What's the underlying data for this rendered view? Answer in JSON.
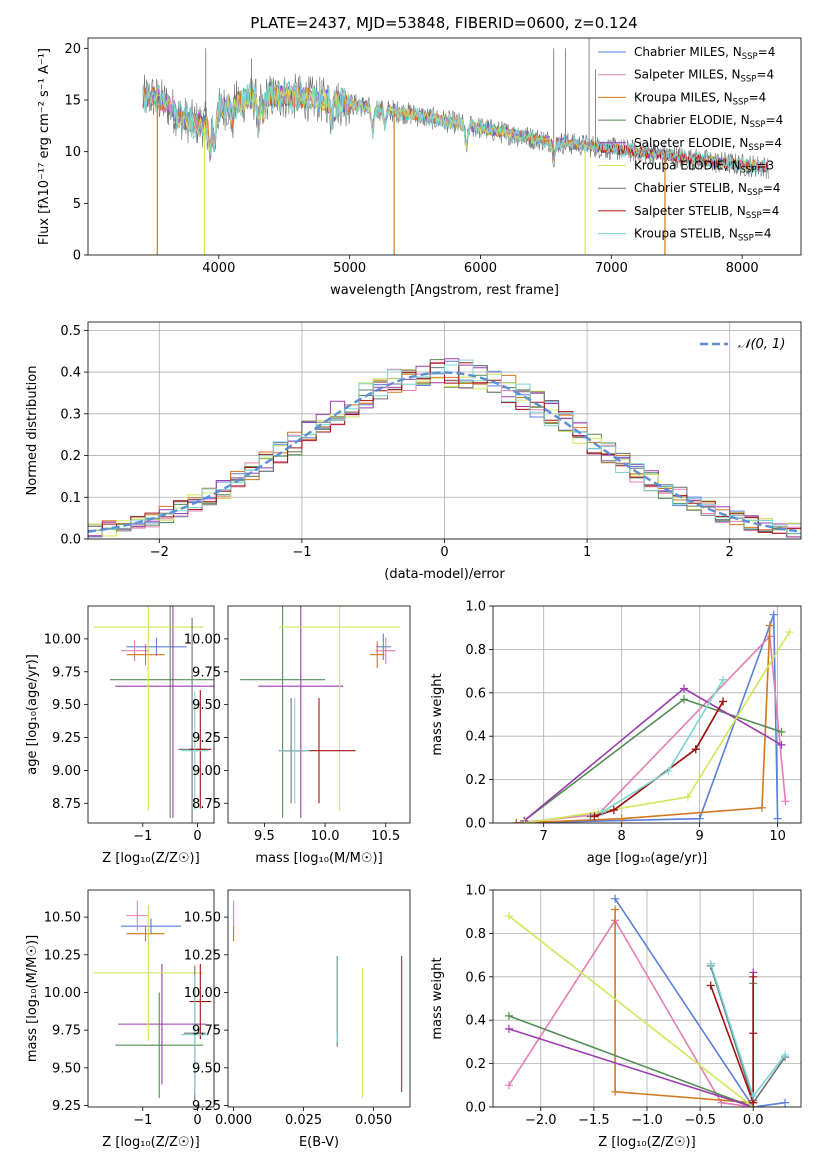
{
  "figure": {
    "title": "PLATE=2437, MJD=53848, FIBERID=0600, z=0.124"
  },
  "colors": {
    "chabrier_miles": "#5b7fdb",
    "salpeter_miles": "#e47fb3",
    "kroupa_miles": "#d2781f",
    "chabrier_elodie": "#548c54",
    "salpeter_elodie": "#9b3caf",
    "kroupa_elodie": "#cfe85a",
    "chabrier_stelib": "#707070",
    "salpeter_stelib": "#a51010",
    "kroupa_stelib": "#7dd4d4",
    "normal": "#5b8fd6"
  },
  "chart_data": [
    {
      "id": "spectrum",
      "type": "line",
      "xlabel": "wavelength [Angstrom, rest frame]",
      "ylabel": "Flux [fλ10⁻¹⁷ erg cm⁻² s⁻¹ A⁻¹]",
      "xlim": [
        3000,
        8450
      ],
      "ylim": [
        0,
        21
      ],
      "xticks": [
        4000,
        5000,
        6000,
        7000,
        8000
      ],
      "yticks": [
        0,
        5,
        10,
        15,
        20
      ],
      "legend_position": "upper right",
      "legend": [
        {
          "label": "Chabrier MILES, N",
          "sub": "SSP",
          "value": "=4",
          "color": "chabrier_miles"
        },
        {
          "label": "Salpeter MILES, N",
          "sub": "SSP",
          "value": "=4",
          "color": "salpeter_miles"
        },
        {
          "label": "Kroupa MILES, N",
          "sub": "SSP",
          "value": "=4",
          "color": "kroupa_miles"
        },
        {
          "label": "Chabrier ELODIE, N",
          "sub": "SSP",
          "value": "=4",
          "color": "chabrier_elodie"
        },
        {
          "label": "Salpeter ELODIE, N",
          "sub": "SSP",
          "value": "=4",
          "color": "salpeter_elodie"
        },
        {
          "label": "Kroupa ELODIE, N",
          "sub": "SSP",
          "value": "=3",
          "color": "kroupa_elodie"
        },
        {
          "label": "Chabrier STELIB, N",
          "sub": "SSP",
          "value": "=4",
          "color": "chabrier_stelib"
        },
        {
          "label": "Salpeter STELIB, N",
          "sub": "SSP",
          "value": "=4",
          "color": "salpeter_stelib"
        },
        {
          "label": "Kroupa STELIB, N",
          "sub": "SSP",
          "value": "=4",
          "color": "kroupa_stelib"
        }
      ],
      "continuum": {
        "x": [
          3420,
          3500,
          3600,
          3700,
          3800,
          3900,
          4000,
          4100,
          4200,
          4300,
          4400,
          4500,
          4600,
          4700,
          4800,
          4900,
          5000,
          5200,
          5400,
          5600,
          5800,
          6000,
          6200,
          6400,
          6600,
          6800,
          7000,
          7200,
          7400,
          7600,
          7800,
          8000,
          8200
        ],
        "y": [
          15.2,
          15.3,
          14.6,
          13.4,
          12.8,
          12.6,
          14.0,
          14.6,
          15.0,
          15.2,
          15.3,
          15.4,
          15.3,
          15.1,
          15.0,
          14.8,
          14.6,
          14.2,
          13.8,
          13.3,
          12.8,
          12.3,
          11.8,
          11.3,
          10.9,
          10.6,
          10.3,
          10.0,
          9.7,
          9.3,
          9.0,
          8.7,
          8.5
        ]
      },
      "absorption_lines": [
        {
          "x": 3933,
          "depth": 3.2
        },
        {
          "x": 3968,
          "depth": 2.8
        },
        {
          "x": 4102,
          "depth": 1.8
        },
        {
          "x": 4304,
          "depth": 2.6
        },
        {
          "x": 4340,
          "depth": 1.6
        },
        {
          "x": 4861,
          "depth": 1.5
        },
        {
          "x": 5175,
          "depth": 2.4
        },
        {
          "x": 5270,
          "depth": 1.4
        },
        {
          "x": 5892,
          "depth": 2.0
        },
        {
          "x": 6563,
          "depth": 1.5
        }
      ],
      "dropouts": [
        {
          "x": 3530,
          "color": "kroupa_miles"
        },
        {
          "x": 3890,
          "color": "kroupa_elodie"
        },
        {
          "x": 5340,
          "color": "kroupa_miles"
        },
        {
          "x": 6800,
          "color": "kroupa_elodie"
        },
        {
          "x": 7410,
          "color": "kroupa_miles"
        }
      ],
      "spikes": [
        {
          "x": 3900,
          "top": 20
        },
        {
          "x": 4250,
          "top": 19
        },
        {
          "x": 6560,
          "top": 20
        },
        {
          "x": 6650,
          "top": 20
        },
        {
          "x": 6830,
          "top": 21
        },
        {
          "x": 6880,
          "top": 18
        }
      ]
    },
    {
      "id": "residuals",
      "type": "histogram",
      "xlabel": "(data-model)/error",
      "ylabel": "Normed distribution",
      "xlim": [
        -2.5,
        2.5
      ],
      "ylim": [
        0,
        0.52
      ],
      "xticks": [
        -2,
        -1,
        0,
        1,
        2
      ],
      "xticklabels": [
        "−2",
        "−1",
        "0",
        "1",
        "2"
      ],
      "yticks": [
        0.0,
        0.1,
        0.2,
        0.3,
        0.4,
        0.5
      ],
      "yticklabels": [
        "0.0",
        "0.1",
        "0.2",
        "0.3",
        "0.4",
        "0.5"
      ],
      "bin_width": 0.1,
      "grid": true,
      "legend": [
        {
          "label": "𝒩(0, 1)",
          "color": "normal",
          "style": "dashed"
        }
      ]
    },
    {
      "id": "age_vs_Z",
      "type": "errorbar",
      "xlabel": "Z [log₁₀(Z/Z☉)]",
      "ylabel": "age  [log₁₀(age/yr)]",
      "xlim": [
        -2.0,
        0.3
      ],
      "ylim": [
        8.6,
        10.25
      ],
      "xticks": [
        -1,
        0
      ],
      "xticklabels": [
        "−1",
        "0"
      ],
      "yticks": [
        8.75,
        9.0,
        9.25,
        9.5,
        9.75,
        10.0
      ],
      "yticklabels": [
        "8.75",
        "9.00",
        "9.25",
        "9.50",
        "9.75",
        "10.00"
      ],
      "points": [
        {
          "x": -0.75,
          "y": 9.94,
          "xerr": 0.55,
          "yerr": 0.07,
          "color": "chabrier_miles"
        },
        {
          "x": -1.15,
          "y": 9.91,
          "xerr": 0.25,
          "yerr": 0.08,
          "color": "salpeter_miles"
        },
        {
          "x": -0.95,
          "y": 9.88,
          "xerr": 0.35,
          "yerr": 0.08,
          "color": "kroupa_miles"
        },
        {
          "x": -0.5,
          "y": 9.69,
          "xerr": 1.1,
          "yerr": 1.05,
          "color": "chabrier_elodie"
        },
        {
          "x": -0.45,
          "y": 9.64,
          "xerr": 1.05,
          "yerr": 1.0,
          "color": "salpeter_elodie"
        },
        {
          "x": -0.9,
          "y": 10.09,
          "xerr": 1.0,
          "yerr": 1.4,
          "color": "kroupa_elodie"
        },
        {
          "x": -0.1,
          "y": 9.16,
          "xerr": 0.25,
          "yerr": 1.0,
          "color": "chabrier_stelib"
        },
        {
          "x": 0.05,
          "y": 9.16,
          "xerr": 0.2,
          "yerr": 0.45,
          "color": "salpeter_stelib"
        },
        {
          "x": -0.05,
          "y": 9.15,
          "xerr": 0.25,
          "yerr": 0.45,
          "color": "kroupa_stelib"
        }
      ]
    },
    {
      "id": "age_vs_mass",
      "type": "errorbar",
      "xlabel": "mass [log₁₀(M/M☉)]",
      "ylabel": "",
      "xlim": [
        9.2,
        10.7
      ],
      "ylim": [
        8.6,
        10.25
      ],
      "xticks": [
        9.5,
        10.0,
        10.5
      ],
      "xticklabels": [
        "9.5",
        "10.0",
        "10.5"
      ],
      "yticks": [
        8.75,
        9.0,
        9.25,
        9.5,
        9.75,
        10.0
      ],
      "yticklabels": [
        "8.75",
        "9.00",
        "9.25",
        "9.50",
        "9.75",
        "10.00"
      ],
      "points": [
        {
          "x": 10.48,
          "y": 9.94,
          "xerr": 0.06,
          "yerr": 0.1,
          "color": "chabrier_miles"
        },
        {
          "x": 10.5,
          "y": 9.91,
          "xerr": 0.08,
          "yerr": 0.1,
          "color": "salpeter_miles"
        },
        {
          "x": 10.43,
          "y": 9.88,
          "xerr": 0.06,
          "yerr": 0.1,
          "color": "kroupa_miles"
        },
        {
          "x": 9.65,
          "y": 9.69,
          "xerr": 0.35,
          "yerr": 1.05,
          "color": "chabrier_elodie"
        },
        {
          "x": 9.8,
          "y": 9.64,
          "xerr": 0.35,
          "yerr": 1.0,
          "color": "salpeter_elodie"
        },
        {
          "x": 10.12,
          "y": 10.09,
          "xerr": 0.5,
          "yerr": 1.4,
          "color": "kroupa_elodie"
        },
        {
          "x": 9.72,
          "y": 9.15,
          "xerr": 0.1,
          "yerr": 0.4,
          "color": "chabrier_stelib"
        },
        {
          "x": 9.95,
          "y": 9.15,
          "xerr": 0.3,
          "yerr": 0.4,
          "color": "salpeter_stelib"
        },
        {
          "x": 9.75,
          "y": 9.15,
          "xerr": 0.12,
          "yerr": 0.4,
          "color": "kroupa_stelib"
        }
      ]
    },
    {
      "id": "weight_vs_age",
      "type": "line",
      "xlabel": "age  [log₁₀(age/yr)]",
      "ylabel": "mass weight",
      "xlim": [
        6.35,
        10.3
      ],
      "ylim": [
        0,
        1.0
      ],
      "xticks": [
        7,
        8,
        9,
        10
      ],
      "yticks": [
        0.0,
        0.2,
        0.4,
        0.6,
        0.8,
        1.0
      ],
      "yticklabels": [
        "0.0",
        "0.2",
        "0.4",
        "0.6",
        "0.8",
        "1.0"
      ],
      "grid": true,
      "series": [
        {
          "color": "chabrier_miles",
          "x": [
            6.65,
            9.0,
            9.95,
            10.0
          ],
          "y": [
            0.0,
            0.02,
            0.96,
            0.02
          ]
        },
        {
          "color": "salpeter_miles",
          "x": [
            6.65,
            7.7,
            9.9,
            10.1
          ],
          "y": [
            0.0,
            0.04,
            0.86,
            0.1
          ]
        },
        {
          "color": "kroupa_miles",
          "x": [
            6.65,
            8.0,
            9.8,
            9.9
          ],
          "y": [
            0.0,
            0.02,
            0.07,
            0.91
          ]
        },
        {
          "color": "chabrier_elodie",
          "x": [
            6.75,
            8.8,
            10.05
          ],
          "y": [
            0.01,
            0.57,
            0.42
          ]
        },
        {
          "color": "salpeter_elodie",
          "x": [
            6.75,
            8.8,
            10.05
          ],
          "y": [
            0.01,
            0.62,
            0.36
          ]
        },
        {
          "color": "kroupa_elodie",
          "x": [
            6.75,
            7.7,
            8.85,
            10.15
          ],
          "y": [
            0.0,
            0.05,
            0.12,
            0.88
          ]
        },
        {
          "color": "chabrier_stelib",
          "x": [
            7.6,
            7.9,
            8.95,
            9.3
          ],
          "y": [
            0.03,
            0.06,
            0.34,
            0.56
          ]
        },
        {
          "color": "salpeter_stelib",
          "x": [
            7.65,
            7.9,
            8.95,
            9.3
          ],
          "y": [
            0.03,
            0.06,
            0.34,
            0.56
          ]
        },
        {
          "color": "kroupa_stelib",
          "x": [
            7.75,
            8.6,
            9.3
          ],
          "y": [
            0.05,
            0.24,
            0.66
          ]
        }
      ]
    },
    {
      "id": "mass_vs_Z",
      "type": "errorbar",
      "xlabel": "Z [log₁₀(Z/Z☉)]",
      "ylabel": "mass [log₁₀(M/M☉)]",
      "xlim": [
        -2.0,
        0.3
      ],
      "ylim": [
        9.24,
        10.68
      ],
      "xticks": [
        -1,
        0
      ],
      "xticklabels": [
        "−1",
        "0"
      ],
      "yticks": [
        9.25,
        9.5,
        9.75,
        10.0,
        10.25,
        10.5
      ],
      "yticklabels": [
        "9.25",
        "9.50",
        "9.75",
        "10.00",
        "10.25",
        "10.50"
      ],
      "points": [
        {
          "x": -0.85,
          "y": 10.44,
          "xerr": 0.55,
          "yerr": 0.05,
          "color": "chabrier_miles"
        },
        {
          "x": -1.1,
          "y": 10.51,
          "xerr": 0.2,
          "yerr": 0.1,
          "color": "salpeter_miles"
        },
        {
          "x": -0.95,
          "y": 10.39,
          "xerr": 0.35,
          "yerr": 0.05,
          "color": "kroupa_miles"
        },
        {
          "x": -0.7,
          "y": 9.65,
          "xerr": 0.8,
          "yerr": 0.35,
          "color": "chabrier_elodie"
        },
        {
          "x": -0.65,
          "y": 9.79,
          "xerr": 0.8,
          "yerr": 0.4,
          "color": "salpeter_elodie"
        },
        {
          "x": -0.9,
          "y": 10.13,
          "xerr": 1.0,
          "yerr": 0.45,
          "color": "kroupa_elodie"
        },
        {
          "x": -0.05,
          "y": 9.73,
          "xerr": 0.2,
          "yerr": 0.45,
          "color": "chabrier_stelib"
        },
        {
          "x": 0.05,
          "y": 9.94,
          "xerr": 0.2,
          "yerr": 0.25,
          "color": "salpeter_stelib"
        },
        {
          "x": -0.05,
          "y": 9.72,
          "xerr": 0.25,
          "yerr": 0.4,
          "color": "kroupa_stelib"
        }
      ]
    },
    {
      "id": "mass_vs_ebv",
      "type": "errorbar",
      "xlabel": "E(B-V)",
      "ylabel": "",
      "xlim": [
        -0.002,
        0.063
      ],
      "ylim": [
        9.24,
        10.68
      ],
      "xticks": [
        0.0,
        0.025,
        0.05
      ],
      "xticklabels": [
        "0.000",
        "0.025",
        "0.050"
      ],
      "yticks": [
        9.25,
        9.5,
        9.75,
        10.0,
        10.25,
        10.5
      ],
      "yticklabels": [
        "9.25",
        "9.50",
        "9.75",
        "10.00",
        "10.25",
        "10.50"
      ],
      "points": [
        {
          "x": 0.0,
          "y": 10.51,
          "xerr": 0,
          "yerr": 0.1,
          "color": "salpeter_miles"
        },
        {
          "x": 0.0,
          "y": 10.39,
          "xerr": 0,
          "yerr": 0.05,
          "color": "kroupa_miles"
        },
        {
          "x": 0.037,
          "y": 9.94,
          "xerr": 0,
          "yerr": 0.3,
          "color": "chabrier_stelib"
        },
        {
          "x": 0.037,
          "y": 9.98,
          "xerr": 0,
          "yerr": 0.25,
          "color": "salpeter_stelib"
        },
        {
          "x": 0.037,
          "y": 9.95,
          "xerr": 0,
          "yerr": 0.28,
          "color": "kroupa_stelib"
        },
        {
          "x": 0.046,
          "y": 9.73,
          "xerr": 0,
          "yerr": 0.43,
          "color": "kroupa_elodie"
        },
        {
          "x": 0.06,
          "y": 9.79,
          "xerr": 0,
          "yerr": 0.45,
          "color": "chabrier_elodie"
        },
        {
          "x": 0.06,
          "y": 9.79,
          "xerr": 0,
          "yerr": 0.45,
          "color": "salpeter_elodie"
        }
      ]
    },
    {
      "id": "weight_vs_Z",
      "type": "line",
      "xlabel": "Z [log₁₀(Z/Z☉)]",
      "ylabel": "mass weight",
      "xlim": [
        -2.45,
        0.45
      ],
      "ylim": [
        0,
        1.0
      ],
      "xticks": [
        -2.0,
        -1.5,
        -1.0,
        -0.5,
        0.0
      ],
      "xticklabels": [
        "−2.0",
        "−1.5",
        "−1.0",
        "−0.5",
        "0.0"
      ],
      "yticks": [
        0.0,
        0.2,
        0.4,
        0.6,
        0.8,
        1.0
      ],
      "yticklabels": [
        "0.0",
        "0.2",
        "0.4",
        "0.6",
        "0.8",
        "1.0"
      ],
      "grid": true,
      "series": [
        {
          "color": "chabrier_miles",
          "x": [
            -1.3,
            0.0,
            0.3
          ],
          "y": [
            0.96,
            0.0,
            0.02
          ]
        },
        {
          "color": "salpeter_miles",
          "x": [
            -2.3,
            -1.3,
            -0.3,
            0.0
          ],
          "y": [
            0.1,
            0.86,
            0.02,
            0.0
          ]
        },
        {
          "color": "kroupa_miles",
          "x": [
            -1.3,
            -1.3,
            0.0
          ],
          "y": [
            0.91,
            0.07,
            0.02
          ]
        },
        {
          "color": "chabrier_elodie",
          "x": [
            -2.3,
            0.0,
            0.0
          ],
          "y": [
            0.42,
            0.0,
            0.57
          ]
        },
        {
          "color": "salpeter_elodie",
          "x": [
            -2.3,
            0.0,
            0.0
          ],
          "y": [
            0.36,
            0.0,
            0.62
          ]
        },
        {
          "color": "kroupa_elodie",
          "x": [
            -2.3,
            0.0
          ],
          "y": [
            0.88,
            0.0
          ]
        },
        {
          "color": "chabrier_stelib",
          "x": [
            -0.4,
            0.0,
            0.0,
            0.3
          ],
          "y": [
            0.65,
            0.03,
            0.02,
            0.23
          ]
        },
        {
          "color": "salpeter_stelib",
          "x": [
            -0.4,
            0.0,
            0.0,
            0.0
          ],
          "y": [
            0.56,
            0.02,
            0.34,
            0.6
          ]
        },
        {
          "color": "kroupa_stelib",
          "x": [
            -0.4,
            0.0,
            0.3
          ],
          "y": [
            0.66,
            0.05,
            0.24
          ]
        }
      ]
    }
  ]
}
